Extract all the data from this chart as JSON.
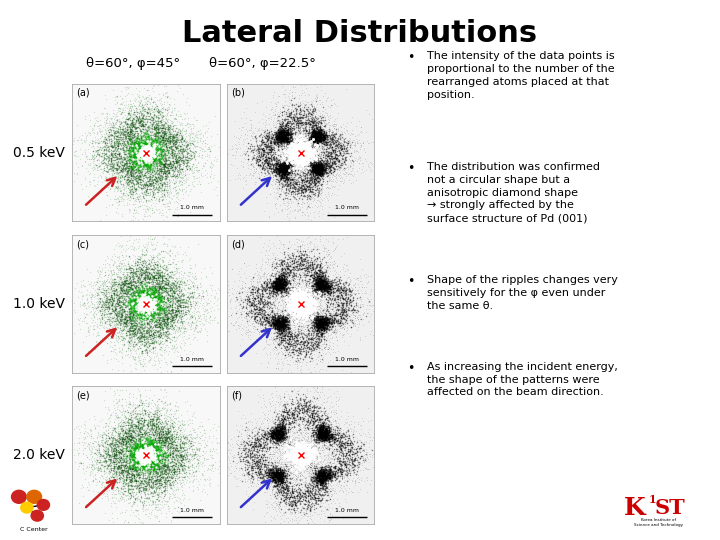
{
  "title": "Lateral Distributions",
  "col1_label": "θ=60°, φ=45°",
  "col2_label": "θ=60°, φ=22.5°",
  "row_labels": [
    "0.5 keV",
    "1.0 keV",
    "2.0 keV"
  ],
  "panel_labels": [
    [
      "(a)",
      "(b)"
    ],
    [
      "(c)",
      "(d)"
    ],
    [
      "(e)",
      "(f)"
    ]
  ],
  "background_color": "#ffffff",
  "title_fontsize": 22,
  "col_label_fontsize": 9.5,
  "row_label_fontsize": 10,
  "bullet_points": [
    "The intensity of the data points is\nproportional to the number of the\nrearranged atoms placed at that\nposition.",
    "The distribution was confirmed\nnot a circular shape but a\nanisotropic diamond shape\n→ strongly affected by the\nsurface structure of Pd (001)",
    "Shape of the ripples changes very\nsensitively for the φ even under\nthe same θ.",
    "As increasing the incident energy,\nthe shape of the patterns were\naffected on the beam direction."
  ],
  "bullet_fontsize": 8.0
}
